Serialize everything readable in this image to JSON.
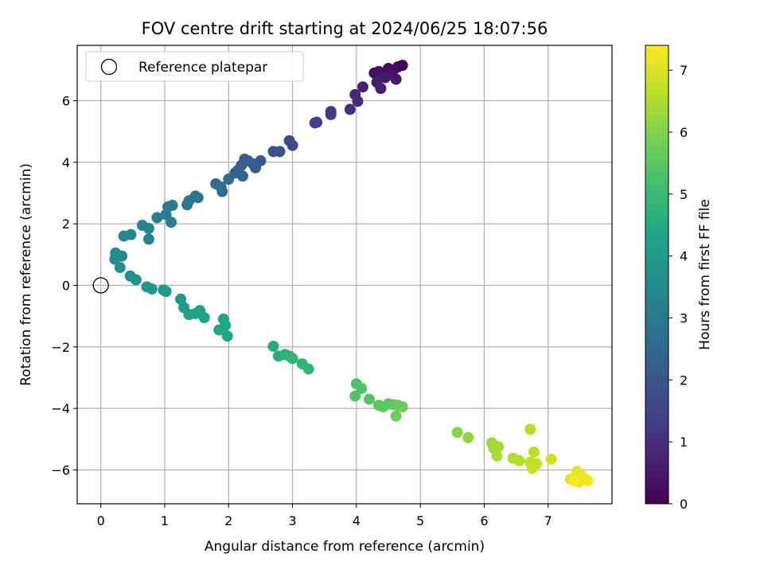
{
  "chart_data": {
    "type": "scatter",
    "title": "FOV centre drift starting at 2024/06/25 18:07:56",
    "xlabel": "Angular distance from reference (arcmin)",
    "ylabel": "Rotation from reference (arcmin)",
    "xlim": [
      -0.37,
      8.0
    ],
    "ylim": [
      -7.1,
      7.8
    ],
    "xticks": [
      0,
      1,
      2,
      3,
      4,
      5,
      6,
      7
    ],
    "yticks": [
      -6,
      -4,
      -2,
      0,
      2,
      4,
      6
    ],
    "grid": true,
    "legend": {
      "position": "upper-left",
      "entries": [
        "Reference platepar"
      ]
    },
    "colorbar": {
      "label": "Hours from first FF file",
      "range": [
        0,
        7.4
      ],
      "ticks": [
        0,
        1,
        2,
        3,
        4,
        5,
        6,
        7
      ],
      "colormap": "viridis"
    },
    "reference_point": {
      "x": 0,
      "y": 0,
      "marker": "open-circle"
    },
    "series": [
      {
        "color_by": "hours",
        "points": [
          {
            "x": 4.72,
            "y": 7.15,
            "h": 0.05
          },
          {
            "x": 4.65,
            "y": 7.1,
            "h": 0.1
          },
          {
            "x": 4.58,
            "y": 7.0,
            "h": 0.15
          },
          {
            "x": 4.5,
            "y": 7.05,
            "h": 0.2
          },
          {
            "x": 4.42,
            "y": 6.9,
            "h": 0.25
          },
          {
            "x": 4.35,
            "y": 6.95,
            "h": 0.3
          },
          {
            "x": 4.28,
            "y": 6.9,
            "h": 0.35
          },
          {
            "x": 4.55,
            "y": 6.85,
            "h": 0.4
          },
          {
            "x": 4.62,
            "y": 6.7,
            "h": 0.45
          },
          {
            "x": 4.45,
            "y": 6.75,
            "h": 0.5
          },
          {
            "x": 4.32,
            "y": 6.6,
            "h": 0.55
          },
          {
            "x": 4.38,
            "y": 6.4,
            "h": 0.6
          },
          {
            "x": 4.1,
            "y": 6.45,
            "h": 0.7
          },
          {
            "x": 3.98,
            "y": 6.2,
            "h": 0.8
          },
          {
            "x": 4.02,
            "y": 5.98,
            "h": 0.9
          },
          {
            "x": 3.9,
            "y": 5.72,
            "h": 1.0
          },
          {
            "x": 3.6,
            "y": 5.65,
            "h": 1.15
          },
          {
            "x": 3.6,
            "y": 5.55,
            "h": 1.25
          },
          {
            "x": 3.38,
            "y": 5.3,
            "h": 1.35
          },
          {
            "x": 3.35,
            "y": 5.28,
            "h": 1.45
          },
          {
            "x": 3.0,
            "y": 4.55,
            "h": 1.6
          },
          {
            "x": 2.95,
            "y": 4.7,
            "h": 1.7
          },
          {
            "x": 2.8,
            "y": 4.35,
            "h": 1.8
          },
          {
            "x": 2.7,
            "y": 4.35,
            "h": 1.9
          },
          {
            "x": 2.5,
            "y": 4.05,
            "h": 2.0
          },
          {
            "x": 2.42,
            "y": 3.82,
            "h": 2.05
          },
          {
            "x": 2.38,
            "y": 3.95,
            "h": 2.1
          },
          {
            "x": 2.3,
            "y": 4.05,
            "h": 2.15
          },
          {
            "x": 2.25,
            "y": 4.1,
            "h": 2.2
          },
          {
            "x": 2.2,
            "y": 3.9,
            "h": 2.25
          },
          {
            "x": 2.15,
            "y": 3.75,
            "h": 2.3
          },
          {
            "x": 2.1,
            "y": 3.65,
            "h": 2.35
          },
          {
            "x": 2.22,
            "y": 3.55,
            "h": 2.4
          },
          {
            "x": 2.0,
            "y": 3.45,
            "h": 2.5
          },
          {
            "x": 1.8,
            "y": 3.3,
            "h": 2.6
          },
          {
            "x": 1.88,
            "y": 3.2,
            "h": 2.65
          },
          {
            "x": 1.9,
            "y": 3.05,
            "h": 2.7
          },
          {
            "x": 1.52,
            "y": 2.85,
            "h": 2.8
          },
          {
            "x": 1.48,
            "y": 2.9,
            "h": 2.85
          },
          {
            "x": 1.38,
            "y": 2.75,
            "h": 2.9
          },
          {
            "x": 1.35,
            "y": 2.62,
            "h": 2.95
          },
          {
            "x": 1.12,
            "y": 2.6,
            "h": 3.0
          },
          {
            "x": 1.05,
            "y": 2.55,
            "h": 3.05
          },
          {
            "x": 1.02,
            "y": 2.3,
            "h": 3.1
          },
          {
            "x": 1.1,
            "y": 2.05,
            "h": 3.15
          },
          {
            "x": 0.88,
            "y": 2.2,
            "h": 3.2
          },
          {
            "x": 0.75,
            "y": 1.85,
            "h": 3.25
          },
          {
            "x": 0.75,
            "y": 1.5,
            "h": 3.3
          },
          {
            "x": 0.65,
            "y": 1.95,
            "h": 3.35
          },
          {
            "x": 0.47,
            "y": 1.65,
            "h": 3.4
          },
          {
            "x": 0.36,
            "y": 1.6,
            "h": 3.45
          },
          {
            "x": 0.33,
            "y": 0.95,
            "h": 3.5
          },
          {
            "x": 0.23,
            "y": 1.05,
            "h": 3.55
          },
          {
            "x": 0.22,
            "y": 0.85,
            "h": 3.6
          },
          {
            "x": 0.3,
            "y": 0.58,
            "h": 3.65
          },
          {
            "x": 0.46,
            "y": 0.3,
            "h": 3.7
          },
          {
            "x": 0.55,
            "y": 0.18,
            "h": 3.75
          },
          {
            "x": 0.72,
            "y": -0.05,
            "h": 3.8
          },
          {
            "x": 0.8,
            "y": -0.12,
            "h": 3.85
          },
          {
            "x": 0.98,
            "y": -0.15,
            "h": 3.9
          },
          {
            "x": 1.02,
            "y": -0.2,
            "h": 3.95
          },
          {
            "x": 1.25,
            "y": -0.45,
            "h": 4.0
          },
          {
            "x": 1.3,
            "y": -0.72,
            "h": 4.05
          },
          {
            "x": 1.38,
            "y": -0.95,
            "h": 4.1
          },
          {
            "x": 1.48,
            "y": -0.92,
            "h": 4.15
          },
          {
            "x": 1.55,
            "y": -0.82,
            "h": 4.2
          },
          {
            "x": 1.62,
            "y": -1.05,
            "h": 4.25
          },
          {
            "x": 1.92,
            "y": -1.1,
            "h": 4.3
          },
          {
            "x": 1.85,
            "y": -1.45,
            "h": 4.35
          },
          {
            "x": 1.95,
            "y": -1.3,
            "h": 4.4
          },
          {
            "x": 1.98,
            "y": -1.65,
            "h": 4.45
          },
          {
            "x": 2.7,
            "y": -1.98,
            "h": 4.55
          },
          {
            "x": 2.78,
            "y": -2.3,
            "h": 4.6
          },
          {
            "x": 2.88,
            "y": -2.25,
            "h": 4.65
          },
          {
            "x": 2.95,
            "y": -2.3,
            "h": 4.7
          },
          {
            "x": 3.0,
            "y": -2.38,
            "h": 4.75
          },
          {
            "x": 3.15,
            "y": -2.55,
            "h": 4.8
          },
          {
            "x": 3.25,
            "y": -2.72,
            "h": 4.85
          },
          {
            "x": 4.0,
            "y": -3.2,
            "h": 5.25
          },
          {
            "x": 4.08,
            "y": -3.35,
            "h": 5.3
          },
          {
            "x": 3.98,
            "y": -3.6,
            "h": 5.35
          },
          {
            "x": 4.2,
            "y": -3.7,
            "h": 5.4
          },
          {
            "x": 4.35,
            "y": -3.9,
            "h": 5.45
          },
          {
            "x": 4.42,
            "y": -3.95,
            "h": 5.5
          },
          {
            "x": 4.5,
            "y": -3.85,
            "h": 5.55
          },
          {
            "x": 4.58,
            "y": -3.88,
            "h": 5.6
          },
          {
            "x": 4.65,
            "y": -3.9,
            "h": 5.65
          },
          {
            "x": 4.72,
            "y": -3.95,
            "h": 5.7
          },
          {
            "x": 4.62,
            "y": -4.25,
            "h": 5.75
          },
          {
            "x": 5.58,
            "y": -4.78,
            "h": 6.1
          },
          {
            "x": 5.75,
            "y": -4.95,
            "h": 6.15
          },
          {
            "x": 6.12,
            "y": -5.12,
            "h": 6.3
          },
          {
            "x": 6.15,
            "y": -5.3,
            "h": 6.35
          },
          {
            "x": 6.22,
            "y": -5.25,
            "h": 6.4
          },
          {
            "x": 6.2,
            "y": -5.55,
            "h": 6.45
          },
          {
            "x": 6.45,
            "y": -5.62,
            "h": 6.5
          },
          {
            "x": 6.55,
            "y": -5.7,
            "h": 6.55
          },
          {
            "x": 6.72,
            "y": -4.68,
            "h": 6.6
          },
          {
            "x": 6.78,
            "y": -5.42,
            "h": 6.65
          },
          {
            "x": 6.72,
            "y": -5.75,
            "h": 6.7
          },
          {
            "x": 6.82,
            "y": -5.8,
            "h": 6.75
          },
          {
            "x": 6.75,
            "y": -5.95,
            "h": 6.8
          },
          {
            "x": 7.05,
            "y": -5.65,
            "h": 6.85
          },
          {
            "x": 7.35,
            "y": -6.3,
            "h": 7.0
          },
          {
            "x": 7.42,
            "y": -6.25,
            "h": 7.05
          },
          {
            "x": 7.45,
            "y": -6.05,
            "h": 7.1
          },
          {
            "x": 7.5,
            "y": -6.15,
            "h": 7.15
          },
          {
            "x": 7.55,
            "y": -6.25,
            "h": 7.2
          },
          {
            "x": 7.48,
            "y": -6.4,
            "h": 7.25
          },
          {
            "x": 7.62,
            "y": -6.35,
            "h": 7.3
          },
          {
            "x": 7.4,
            "y": -6.35,
            "h": 7.35
          }
        ]
      }
    ]
  }
}
